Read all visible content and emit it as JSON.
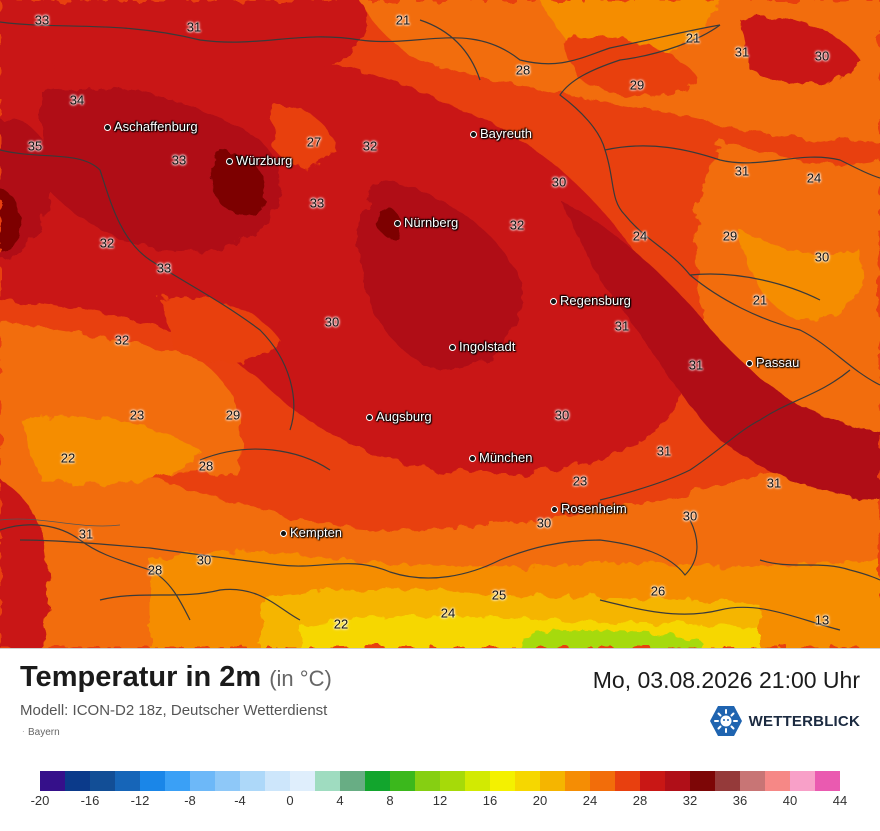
{
  "map": {
    "region": "Bayern",
    "cities": [
      {
        "name": "Aschaffenburg"
      },
      {
        "name": "Würzburg"
      },
      {
        "name": "Bayreuth"
      },
      {
        "name": "Nürnberg"
      },
      {
        "name": "Regensburg"
      },
      {
        "name": "Ingolstadt"
      },
      {
        "name": "Passau"
      },
      {
        "name": "Augsburg"
      },
      {
        "name": "München"
      },
      {
        "name": "Rosenheim"
      },
      {
        "name": "Kempten"
      }
    ],
    "values": [
      "33",
      "31",
      "21",
      "21",
      "31",
      "30",
      "28",
      "29",
      "34",
      "35",
      "33",
      "27",
      "32",
      "31",
      "24",
      "30",
      "33",
      "32",
      "24",
      "29",
      "32",
      "33",
      "30",
      "21",
      "30",
      "32",
      "31",
      "31",
      "23",
      "29",
      "30",
      "22",
      "28",
      "31",
      "23",
      "31",
      "30",
      "31",
      "30",
      "28",
      "30",
      "26",
      "25",
      "24",
      "22",
      "13"
    ]
  },
  "footer": {
    "title": "Temperatur in 2m",
    "unit": "(in °C)",
    "model": "Modell: ICON-D2 18z, Deutscher Wetterdienst",
    "region_label": "Bayern",
    "datetime": "Mo, 03.08.2026 21:00 Uhr",
    "brand": "WETTERBLICK",
    "brand_icon": "sun-logo-icon"
  },
  "legend": {
    "colors": [
      "#35108a",
      "#0b3a8a",
      "#124e96",
      "#1665b8",
      "#1a86e8",
      "#3aa0f6",
      "#6db8f8",
      "#8ec8f8",
      "#add8f9",
      "#cde6fb",
      "#dfeefc",
      "#9fdcc0",
      "#68ad84",
      "#12a52d",
      "#3bb81c",
      "#86cf12",
      "#a6da09",
      "#d2ea02",
      "#f4f100",
      "#f6d700",
      "#f5b500",
      "#f58d04",
      "#f26d0a",
      "#e8400f",
      "#c91715",
      "#b00f18",
      "#7d0606",
      "#953a3a",
      "#c87575",
      "#f68886",
      "#f8a0c8",
      "#ea5ab0"
    ],
    "labels": [
      "-20",
      "-16",
      "-12",
      "-8",
      "-4",
      "0",
      "4",
      "8",
      "12",
      "16",
      "20",
      "24",
      "28",
      "32",
      "36",
      "40",
      "44"
    ]
  }
}
